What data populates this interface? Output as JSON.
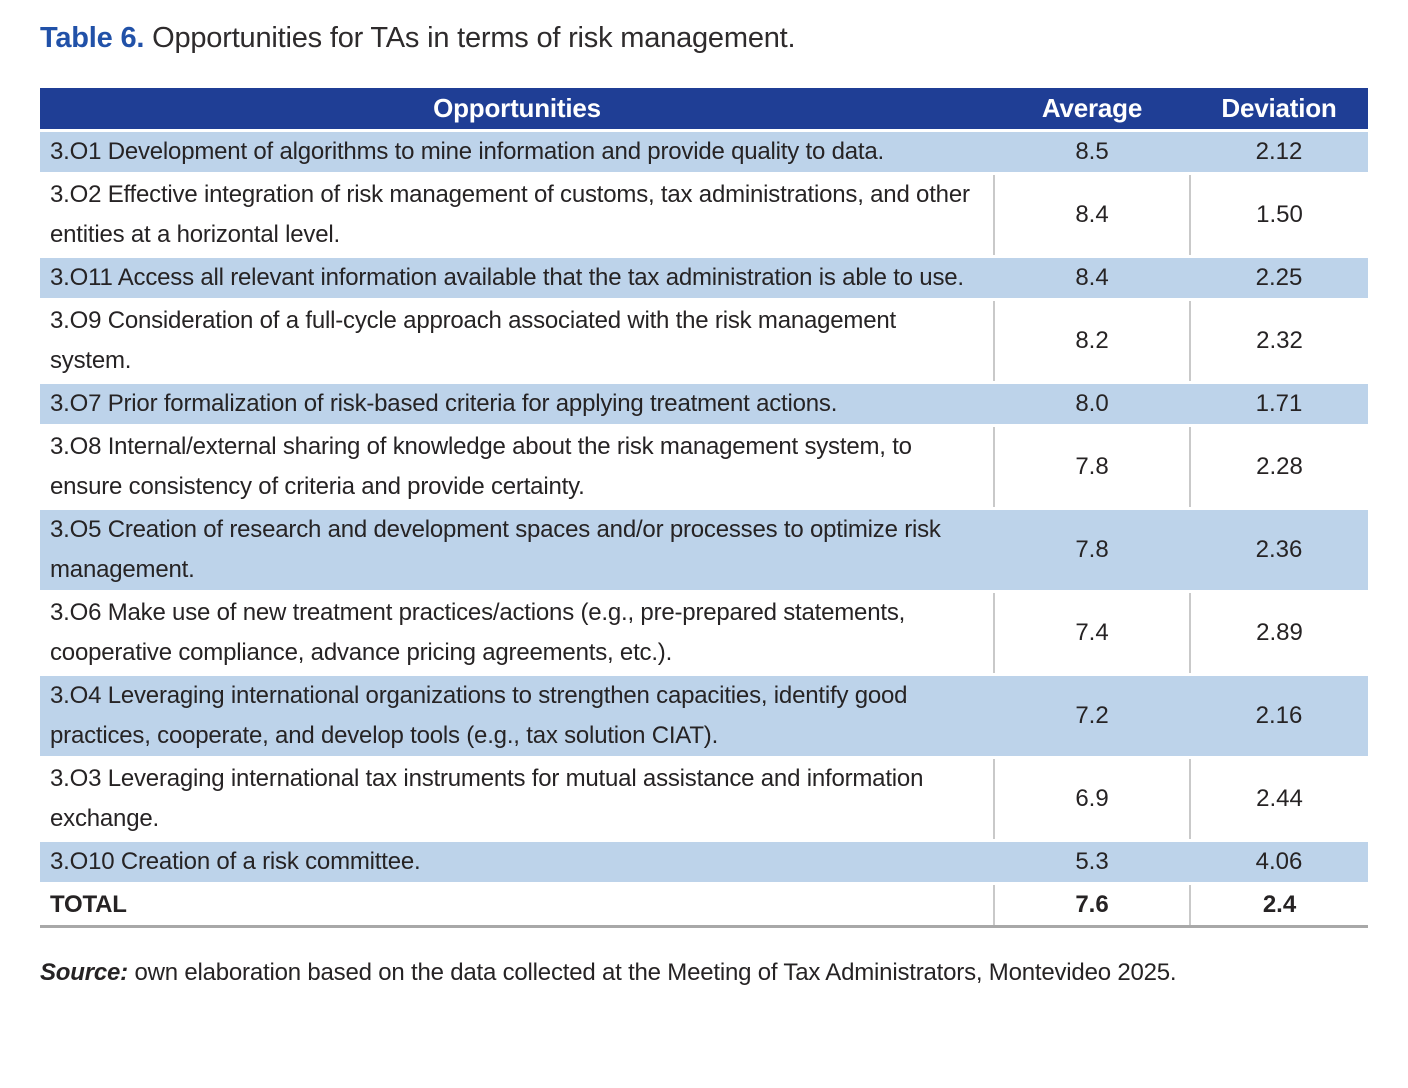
{
  "title": {
    "label": "Table 6.",
    "text": "Opportunities for TAs in terms of risk management."
  },
  "table": {
    "columns": [
      "Opportunities",
      "Average",
      "Deviation"
    ],
    "rows": [
      {
        "opportunity": "3.O1 Development of algorithms to mine information and provide quality to data.",
        "average": "8.5",
        "deviation": "2.12"
      },
      {
        "opportunity": "3.O2 Effective integration of risk management of customs, tax administrations, and other entities at a horizontal level.",
        "average": "8.4",
        "deviation": "1.50"
      },
      {
        "opportunity": "3.O11 Access all relevant information available that the tax administration is able to use.",
        "average": "8.4",
        "deviation": "2.25"
      },
      {
        "opportunity": "3.O9 Consideration of a full-cycle approach associated with the risk management system.",
        "average": "8.2",
        "deviation": "2.32"
      },
      {
        "opportunity": "3.O7 Prior formalization of risk-based criteria for applying treatment actions.",
        "average": "8.0",
        "deviation": "1.71"
      },
      {
        "opportunity": "3.O8 Internal/external sharing of knowledge about the risk management system, to ensure consistency of criteria and provide certainty.",
        "average": "7.8",
        "deviation": "2.28"
      },
      {
        "opportunity": "3.O5 Creation of research and development spaces and/or processes to optimize risk management.",
        "average": "7.8",
        "deviation": "2.36"
      },
      {
        "opportunity": "3.O6 Make use of new treatment practices/actions (e.g., pre-prepared statements, cooperative compliance, advance pricing agreements, etc.).",
        "average": "7.4",
        "deviation": "2.89"
      },
      {
        "opportunity": "3.O4 Leveraging international organizations to strengthen capacities, identify good practices, cooperate, and develop tools (e.g., tax solution CIAT).",
        "average": "7.2",
        "deviation": "2.16"
      },
      {
        "opportunity": "3.O3 Leveraging international tax instruments for mutual assistance and information exchange.",
        "average": "6.9",
        "deviation": "2.44"
      },
      {
        "opportunity": "3.O10 Creation of a risk committee.",
        "average": "5.3",
        "deviation": "4.06"
      },
      {
        "opportunity": "TOTAL",
        "average": "7.6",
        "deviation": "2.4",
        "total": true
      }
    ]
  },
  "source": {
    "label": "Source:",
    "text": "own elaboration based on the data collected at the Meeting of Tax Administrators, Montevideo 2025."
  },
  "colors": {
    "header_bg": "#1f3e95",
    "alt_row_bg": "#bdd3ea",
    "title_accent": "#2151a8",
    "body_text": "#262324",
    "divider_gray": "#c9c9c9"
  }
}
